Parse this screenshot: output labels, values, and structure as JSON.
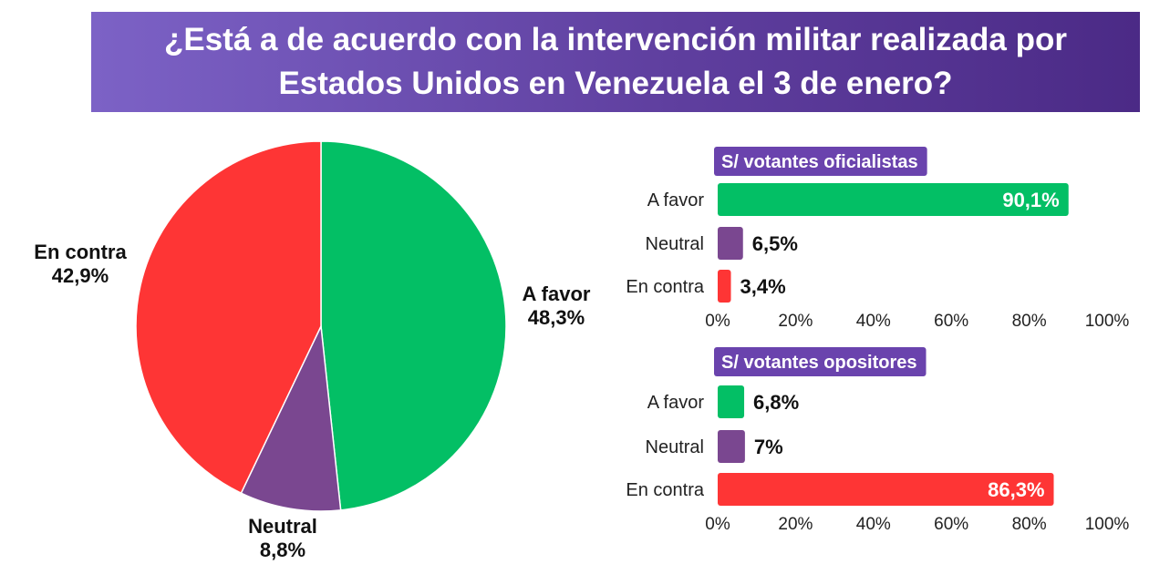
{
  "title": {
    "line1": "¿Está a de acuerdo con la intervención militar realizada por",
    "line2": "Estados Unidos en Venezuela el 3 de enero?"
  },
  "colors": {
    "a_favor": "#03bf65",
    "neutral": "#7a4790",
    "en_contra": "#fe3535",
    "banner": "#5c3e9b",
    "header_badge": "#6a43ad"
  },
  "chart_data": [
    {
      "type": "pie",
      "title": "",
      "slices": [
        {
          "label": "A favor",
          "value": 48.3,
          "display": "48,3%",
          "color": "#03bf65"
        },
        {
          "label": "Neutral",
          "value": 8.8,
          "display": "8,8%",
          "color": "#7a4790"
        },
        {
          "label": "En contra",
          "value": 42.9,
          "display": "42,9%",
          "color": "#fe3535"
        }
      ]
    },
    {
      "type": "bar",
      "orientation": "horizontal",
      "title": "S/ votantes oficialistas",
      "categories": [
        "A favor",
        "Neutral",
        "En contra"
      ],
      "values": [
        90.1,
        6.5,
        3.4
      ],
      "labels": [
        "90,1%",
        "6,5%",
        "3,4%"
      ],
      "colors": [
        "#03bf65",
        "#7a4790",
        "#fe3535"
      ],
      "xlim": [
        0,
        100
      ],
      "ticks": [
        "0%",
        "20%",
        "40%",
        "60%",
        "80%",
        "100%"
      ]
    },
    {
      "type": "bar",
      "orientation": "horizontal",
      "title": "S/ votantes opositores",
      "categories": [
        "A favor",
        "Neutral",
        "En contra"
      ],
      "values": [
        6.8,
        7,
        86.3
      ],
      "labels": [
        "6,8%",
        "7%",
        "86,3%"
      ],
      "colors": [
        "#03bf65",
        "#7a4790",
        "#fe3535"
      ],
      "xlim": [
        0,
        100
      ],
      "ticks": [
        "0%",
        "20%",
        "40%",
        "60%",
        "80%",
        "100%"
      ]
    }
  ]
}
